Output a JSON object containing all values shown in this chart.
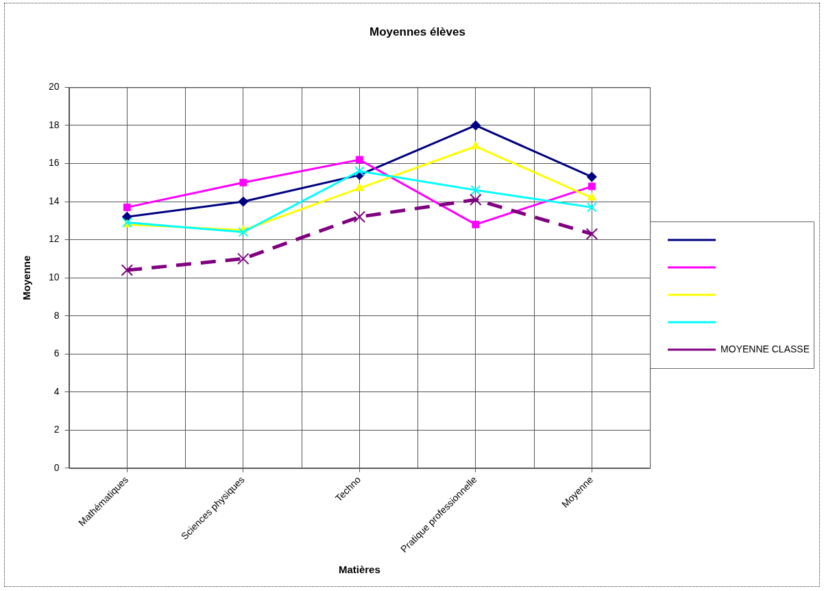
{
  "chart_data": {
    "type": "line",
    "title": "Moyennes élèves",
    "xlabel": "Matières",
    "ylabel": "Moyenne",
    "categories": [
      "Mathématiques",
      "Sciences physiques",
      "Techno",
      "Pratique professionnelle",
      "Moyenne"
    ],
    "ylim": [
      0,
      20
    ],
    "yticks": [
      0,
      2,
      4,
      6,
      8,
      10,
      12,
      14,
      16,
      18,
      20
    ],
    "grid": true,
    "legend": "right",
    "series": [
      {
        "color": "#000080",
        "marker": "diamond",
        "line_style": "solid",
        "values": [
          13.2,
          14.0,
          15.4,
          18.0,
          15.3
        ]
      },
      {
        "color": "#ff00ff",
        "marker": "square",
        "line_style": "solid",
        "values": [
          13.7,
          15.0,
          16.2,
          12.8,
          14.8
        ]
      },
      {
        "color": "#ffff00",
        "marker": "triangle",
        "line_style": "solid",
        "values": [
          12.8,
          12.5,
          14.7,
          16.9,
          14.2
        ]
      },
      {
        "color": "#00ffff",
        "marker": "cross",
        "line_style": "solid",
        "values": [
          12.9,
          12.4,
          15.6,
          14.6,
          13.7
        ]
      },
      {
        "name": "MOYENNE CLASSE",
        "color": "#800080",
        "marker": "cross",
        "line_style": "dashed",
        "values": [
          10.4,
          11.0,
          13.2,
          14.1,
          12.3
        ]
      }
    ]
  }
}
